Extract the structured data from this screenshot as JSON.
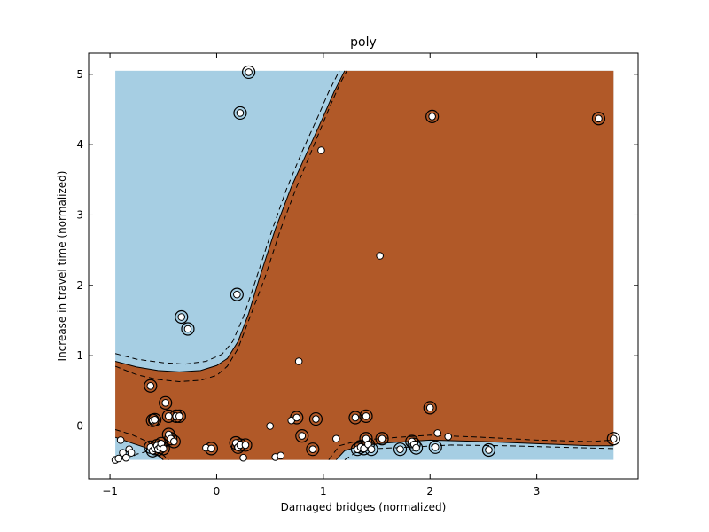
{
  "chart_data": {
    "type": "scatter",
    "title": "poly",
    "xlabel": "Damaged bridges (normalized)",
    "ylabel": "Increase in travel time (normalized)",
    "xlim": [
      -1.2,
      3.95
    ],
    "ylim": [
      -0.75,
      5.3
    ],
    "xticks": [
      -1,
      0,
      1,
      2,
      3
    ],
    "yticks": [
      0,
      1,
      2,
      3,
      4,
      5
    ],
    "xtick_labels": [
      "−1",
      "0",
      "1",
      "2",
      "3"
    ],
    "ytick_labels": [
      "0",
      "1",
      "2",
      "3",
      "4",
      "5"
    ],
    "decision_region": {
      "x_range": [
        -0.95,
        3.72
      ],
      "y_range": [
        -0.48,
        5.05
      ],
      "class_a_color": "#a6cee3",
      "class_b_color": "#b15928"
    },
    "decision_boundary": [
      [
        -0.95,
        0.92
      ],
      [
        -0.75,
        0.84
      ],
      [
        -0.55,
        0.79
      ],
      [
        -0.35,
        0.77
      ],
      [
        -0.15,
        0.79
      ],
      [
        0.0,
        0.86
      ],
      [
        0.1,
        0.96
      ],
      [
        0.2,
        1.2
      ],
      [
        0.3,
        1.6
      ],
      [
        0.4,
        2.1
      ],
      [
        0.55,
        2.8
      ],
      [
        0.7,
        3.4
      ],
      [
        0.85,
        3.9
      ],
      [
        1.0,
        4.4
      ],
      [
        1.1,
        4.75
      ],
      [
        1.2,
        5.05
      ]
    ],
    "margin_upper": [
      [
        -0.95,
        1.03
      ],
      [
        -0.75,
        0.95
      ],
      [
        -0.5,
        0.9
      ],
      [
        -0.3,
        0.88
      ],
      [
        -0.1,
        0.92
      ],
      [
        0.05,
        1.02
      ],
      [
        0.15,
        1.2
      ],
      [
        0.25,
        1.55
      ],
      [
        0.35,
        2.0
      ],
      [
        0.5,
        2.7
      ],
      [
        0.65,
        3.35
      ],
      [
        0.8,
        3.9
      ],
      [
        0.95,
        4.4
      ],
      [
        1.05,
        4.75
      ],
      [
        1.15,
        5.05
      ]
    ],
    "margin_lower": [
      [
        -0.95,
        0.85
      ],
      [
        -0.75,
        0.73
      ],
      [
        -0.55,
        0.66
      ],
      [
        -0.35,
        0.63
      ],
      [
        -0.15,
        0.65
      ],
      [
        0.0,
        0.72
      ],
      [
        0.1,
        0.85
      ],
      [
        0.2,
        1.1
      ],
      [
        0.3,
        1.5
      ],
      [
        0.45,
        2.1
      ],
      [
        0.6,
        2.8
      ],
      [
        0.75,
        3.4
      ],
      [
        0.9,
        3.95
      ],
      [
        1.05,
        4.5
      ],
      [
        1.15,
        4.85
      ],
      [
        1.22,
        5.05
      ]
    ],
    "lower_boundary": [
      [
        -0.95,
        -0.16
      ],
      [
        -0.8,
        -0.24
      ],
      [
        -0.68,
        -0.3
      ],
      [
        -0.6,
        -0.36
      ],
      [
        -0.5,
        -0.48
      ]
    ],
    "lower_boundary_right": [
      [
        1.12,
        -0.48
      ],
      [
        1.2,
        -0.35
      ],
      [
        1.35,
        -0.28
      ],
      [
        1.6,
        -0.24
      ],
      [
        2.0,
        -0.2
      ],
      [
        2.5,
        -0.22
      ],
      [
        3.0,
        -0.25
      ],
      [
        3.5,
        -0.28
      ],
      [
        3.72,
        -0.28
      ]
    ],
    "lower_margin_1": [
      [
        -0.95,
        -0.05
      ],
      [
        -0.8,
        -0.12
      ],
      [
        -0.65,
        -0.22
      ],
      [
        -0.55,
        -0.35
      ],
      [
        -0.45,
        -0.48
      ]
    ],
    "lower_margin_2": [
      [
        -0.85,
        -0.48
      ],
      [
        -0.75,
        -0.4
      ],
      [
        -0.65,
        -0.36
      ],
      [
        -0.55,
        -0.4
      ],
      [
        -0.5,
        -0.48
      ]
    ],
    "lower_margin_right_1": [
      [
        1.05,
        -0.48
      ],
      [
        1.15,
        -0.28
      ],
      [
        1.35,
        -0.2
      ],
      [
        1.7,
        -0.16
      ],
      [
        2.0,
        -0.13
      ],
      [
        2.5,
        -0.16
      ],
      [
        3.0,
        -0.2
      ],
      [
        3.5,
        -0.22
      ],
      [
        3.72,
        -0.2
      ]
    ],
    "lower_margin_right_2": [
      [
        1.2,
        -0.48
      ],
      [
        1.3,
        -0.38
      ],
      [
        1.5,
        -0.32
      ],
      [
        1.8,
        -0.3
      ],
      [
        2.2,
        -0.27
      ],
      [
        2.7,
        -0.28
      ],
      [
        3.2,
        -0.3
      ],
      [
        3.72,
        -0.32
      ]
    ],
    "points": [
      {
        "x": -0.95,
        "y": -0.48,
        "sv": false
      },
      {
        "x": -0.92,
        "y": -0.46,
        "sv": false
      },
      {
        "x": -0.9,
        "y": -0.2,
        "sv": false
      },
      {
        "x": -0.88,
        "y": -0.38,
        "sv": false
      },
      {
        "x": -0.85,
        "y": -0.45,
        "sv": false
      },
      {
        "x": -0.82,
        "y": -0.33,
        "sv": false
      },
      {
        "x": -0.8,
        "y": -0.38,
        "sv": false
      },
      {
        "x": -0.62,
        "y": 0.57,
        "sv": true
      },
      {
        "x": -0.6,
        "y": 0.08,
        "sv": true
      },
      {
        "x": -0.58,
        "y": 0.09,
        "sv": true
      },
      {
        "x": -0.62,
        "y": -0.3,
        "sv": true
      },
      {
        "x": -0.6,
        "y": -0.35,
        "sv": true
      },
      {
        "x": -0.58,
        "y": -0.32,
        "sv": true
      },
      {
        "x": -0.56,
        "y": -0.28,
        "sv": true
      },
      {
        "x": -0.55,
        "y": -0.33,
        "sv": true
      },
      {
        "x": -0.53,
        "y": -0.3,
        "sv": true
      },
      {
        "x": -0.52,
        "y": -0.25,
        "sv": true
      },
      {
        "x": -0.5,
        "y": -0.32,
        "sv": true
      },
      {
        "x": -0.48,
        "y": 0.33,
        "sv": true
      },
      {
        "x": -0.45,
        "y": 0.14,
        "sv": true
      },
      {
        "x": -0.45,
        "y": -0.12,
        "sv": true
      },
      {
        "x": -0.43,
        "y": -0.18,
        "sv": true
      },
      {
        "x": -0.4,
        "y": -0.22,
        "sv": true
      },
      {
        "x": -0.38,
        "y": 0.14,
        "sv": true
      },
      {
        "x": -0.35,
        "y": 0.14,
        "sv": true
      },
      {
        "x": -0.33,
        "y": 1.55,
        "sv": true
      },
      {
        "x": -0.27,
        "y": 1.38,
        "sv": true
      },
      {
        "x": -0.1,
        "y": -0.31,
        "sv": false
      },
      {
        "x": -0.05,
        "y": -0.32,
        "sv": true
      },
      {
        "x": 0.18,
        "y": -0.24,
        "sv": true
      },
      {
        "x": 0.2,
        "y": -0.3,
        "sv": true
      },
      {
        "x": 0.22,
        "y": -0.27,
        "sv": true
      },
      {
        "x": 0.25,
        "y": -0.45,
        "sv": false
      },
      {
        "x": 0.27,
        "y": -0.27,
        "sv": true
      },
      {
        "x": 0.19,
        "y": 1.87,
        "sv": true
      },
      {
        "x": 0.22,
        "y": 4.45,
        "sv": true
      },
      {
        "x": 0.3,
        "y": 5.03,
        "sv": true
      },
      {
        "x": 0.5,
        "y": 0.0,
        "sv": false
      },
      {
        "x": 0.55,
        "y": -0.44,
        "sv": false
      },
      {
        "x": 0.6,
        "y": -0.42,
        "sv": false
      },
      {
        "x": 0.7,
        "y": 0.08,
        "sv": false
      },
      {
        "x": 0.75,
        "y": 0.12,
        "sv": true
      },
      {
        "x": 0.77,
        "y": 0.92,
        "sv": false
      },
      {
        "x": 0.8,
        "y": -0.14,
        "sv": true
      },
      {
        "x": 0.9,
        "y": -0.33,
        "sv": true
      },
      {
        "x": 0.93,
        "y": 0.1,
        "sv": true
      },
      {
        "x": 0.98,
        "y": 3.92,
        "sv": false
      },
      {
        "x": 1.12,
        "y": -0.18,
        "sv": false
      },
      {
        "x": 1.3,
        "y": 0.12,
        "sv": true
      },
      {
        "x": 1.32,
        "y": -0.33,
        "sv": true
      },
      {
        "x": 1.35,
        "y": -0.3,
        "sv": true
      },
      {
        "x": 1.38,
        "y": -0.32,
        "sv": true
      },
      {
        "x": 1.4,
        "y": -0.18,
        "sv": true
      },
      {
        "x": 1.4,
        "y": 0.14,
        "sv": true
      },
      {
        "x": 1.42,
        "y": -0.26,
        "sv": true
      },
      {
        "x": 1.45,
        "y": -0.33,
        "sv": true
      },
      {
        "x": 1.53,
        "y": 2.42,
        "sv": false
      },
      {
        "x": 1.55,
        "y": -0.18,
        "sv": true
      },
      {
        "x": 1.72,
        "y": -0.33,
        "sv": true
      },
      {
        "x": 1.83,
        "y": -0.22,
        "sv": true
      },
      {
        "x": 1.85,
        "y": -0.26,
        "sv": true
      },
      {
        "x": 1.87,
        "y": -0.31,
        "sv": true
      },
      {
        "x": 2.0,
        "y": 0.26,
        "sv": true
      },
      {
        "x": 2.02,
        "y": 4.4,
        "sv": true
      },
      {
        "x": 2.05,
        "y": -0.3,
        "sv": true
      },
      {
        "x": 2.07,
        "y": -0.1,
        "sv": false
      },
      {
        "x": 2.17,
        "y": -0.15,
        "sv": false
      },
      {
        "x": 2.55,
        "y": -0.34,
        "sv": true
      },
      {
        "x": 3.58,
        "y": 4.37,
        "sv": true
      },
      {
        "x": 3.72,
        "y": -0.18,
        "sv": true
      }
    ]
  }
}
